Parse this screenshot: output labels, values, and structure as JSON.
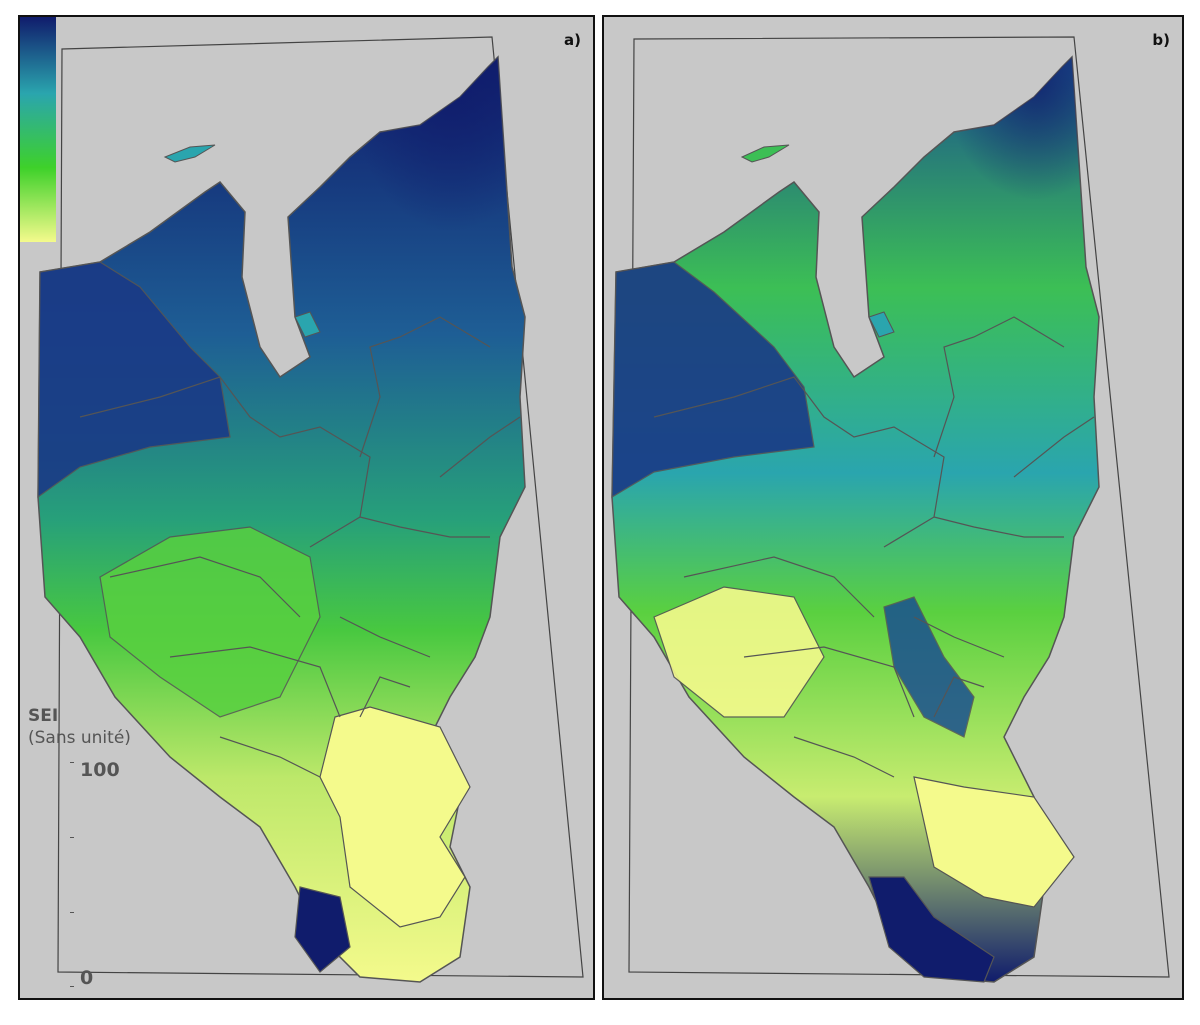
{
  "figure": {
    "panels": [
      {
        "id": "a",
        "label": "a)"
      },
      {
        "id": "b",
        "label": "b)"
      }
    ]
  },
  "legend": {
    "title_line1": "SEI",
    "title_line2": "(Sans unité)",
    "max_label": "100",
    "min_label": "0",
    "min_value": 0,
    "max_value": 100,
    "colors": [
      "#f4fa8c",
      "#3ed12a",
      "#2aa5ae",
      "#101c6c"
    ]
  },
  "colors": {
    "background": "#c8c8c8",
    "outline": "#555555",
    "low": "#f4fa8c",
    "mid_low": "#3ed12a",
    "mid_high": "#2aa5ae",
    "high": "#101c6c"
  }
}
